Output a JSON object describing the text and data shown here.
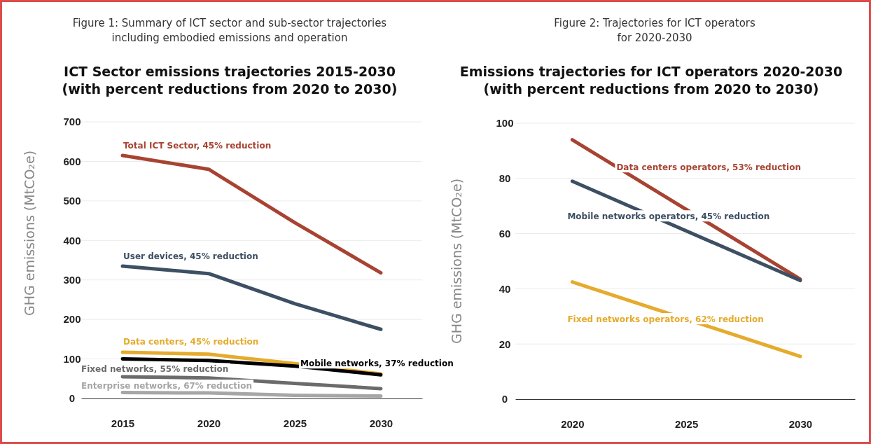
{
  "chart_data": [
    {
      "type": "line",
      "title": "ICT Sector emissions trajectories 2015-2030\n(with percent reductions from 2020 to 2030)",
      "annotations": [
        "Figure 1: Summary of ICT sector and sub-sector trajectories\nincluding embodied emissions and operation"
      ],
      "ylabel": "GHG emissions (MtCO₂e)",
      "x": [
        2015,
        2020,
        2025,
        2030
      ],
      "xlim": [
        2012.6,
        2032.4
      ],
      "xticks": [
        2015,
        2020,
        2025,
        2030
      ],
      "ylim": [
        0,
        700
      ],
      "yticks": [
        0,
        100,
        200,
        300,
        400,
        500,
        600,
        700
      ],
      "grid": "y",
      "legend": false,
      "marker": "none",
      "line_style": "solid",
      "series": [
        {
          "name": "Total ICT Sector, 45% reduction",
          "color": "#a84332",
          "values": [
            615,
            580,
            445,
            318
          ]
        },
        {
          "name": "User devices, 45% reduction",
          "color": "#3d4f63",
          "values": [
            335,
            316,
            240,
            175
          ]
        },
        {
          "name": "Data centers, 45% reduction",
          "color": "#e5ab2d",
          "values": [
            117,
            112,
            88,
            62
          ]
        },
        {
          "name": "Mobile networks, 37% reduction",
          "color": "#000000",
          "values": [
            100,
            96,
            82,
            60
          ]
        },
        {
          "name": "Fixed networks, 55% reduction",
          "color": "#6b6b6b",
          "values": [
            55,
            52,
            38,
            25
          ]
        },
        {
          "name": "Enterprise networks, 67% reduction",
          "color": "#a6a6a6",
          "values": [
            15,
            14,
            8,
            6
          ]
        }
      ]
    },
    {
      "type": "line",
      "title": "Emissions trajectories for ICT operators 2020-2030\n(with percent reductions from 2020 to 2030)",
      "annotations": [
        "Figure 2: Trajectories for ICT operators\nfor 2020-2030"
      ],
      "ylabel": "GHG emissions (MtCO₂e)",
      "x": [
        2020,
        2030
      ],
      "xlim": [
        2017.5,
        2032.4
      ],
      "xticks": [
        2020,
        2025,
        2030
      ],
      "ylim": [
        0,
        100
      ],
      "yticks": [
        0,
        20,
        40,
        60,
        80,
        100
      ],
      "grid": "y",
      "legend": false,
      "marker": "none",
      "line_style": "solid",
      "series": [
        {
          "name": "Data centers operators, 53% reduction",
          "color": "#a84332",
          "values": [
            94,
            43.5
          ]
        },
        {
          "name": "Mobile networks operators, 45% reduction",
          "color": "#3d4f63",
          "values": [
            79,
            43
          ]
        },
        {
          "name": "Fixed networks operators, 62% reduction",
          "color": "#e5ab2d",
          "values": [
            42.5,
            15.5
          ]
        }
      ]
    }
  ]
}
